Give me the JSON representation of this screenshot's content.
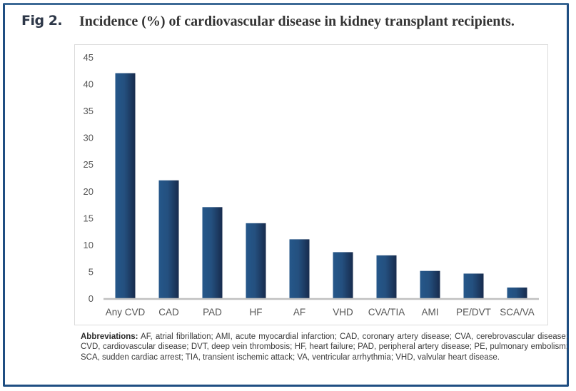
{
  "figure": {
    "label": "Fig 2.",
    "title": "Incidence (%) of cardiovascular disease in kidney transplant recipients."
  },
  "footnote": {
    "heading": "Abbreviations:",
    "text": "AF, atrial fibrillation; AMI, acute myocardial infarction; CAD, coronary artery disease; CVA, cerebrovascular disease; CVD, cardiovascular disease; DVT, deep vein thrombosis; HF, heart failure; PAD, peripheral artery disease; PE, pulmonary embolism; SCA, sudden cardiac arrest; TIA, transient ischemic attack; VA, ventricular arrhythmia; VHD, valvular heart disease."
  },
  "colors": {
    "bar_light": "#25578a",
    "bar_dark": "#172b4d",
    "frame": "#1f4e82",
    "axis": "#c0c0c0"
  },
  "chart_data": {
    "type": "bar",
    "title": "Incidence (%) of cardiovascular disease in kidney transplant recipients.",
    "xlabel": "",
    "ylabel": "",
    "categories": [
      "Any CVD",
      "CAD",
      "PAD",
      "HF",
      "AF",
      "VHD",
      "CVA/TIA",
      "AMI",
      "PE/DVT",
      "SCA/VA"
    ],
    "values": [
      42,
      22,
      17,
      14,
      11,
      8.6,
      8,
      5.1,
      4.6,
      2
    ],
    "ylim": [
      0,
      45
    ],
    "yticks": [
      0,
      5,
      10,
      15,
      20,
      25,
      30,
      35,
      40,
      45
    ],
    "grid": false,
    "legend": "none"
  }
}
